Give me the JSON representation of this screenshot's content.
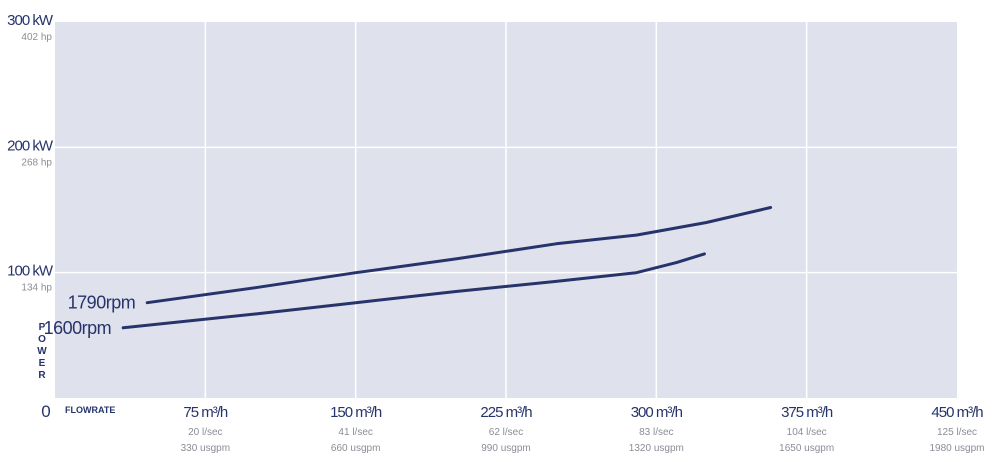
{
  "chart_data": {
    "type": "line",
    "colors": {
      "plot_bg": "#dfe1ec",
      "grid": "#ffffff",
      "line": "#27346b",
      "label": "#27346b",
      "sublabel": "#8a8d96"
    },
    "grid": true,
    "xlim": [
      0,
      450
    ],
    "ylim": [
      0,
      300
    ],
    "x_label_main": "FLOWRATE",
    "y_label_main": "POWER",
    "y_letters": [
      "P",
      "O",
      "W",
      "E",
      "R"
    ],
    "zero_label": "0",
    "y_ticks": [
      {
        "value": 100,
        "label": "100 kW",
        "sub": "134 hp"
      },
      {
        "value": 200,
        "label": "200 kW",
        "sub": "268 hp"
      },
      {
        "value": 300,
        "label": "300 kW",
        "sub": "402 hp"
      }
    ],
    "x_ticks": [
      {
        "value": 75,
        "label": "75 m³/h",
        "sub1": "20 l/sec",
        "sub2": "330 usgpm"
      },
      {
        "value": 150,
        "label": "150 m³/h",
        "sub1": "41 l/sec",
        "sub2": "660 usgpm"
      },
      {
        "value": 225,
        "label": "225 m³/h",
        "sub1": "62 l/sec",
        "sub2": "990 usgpm"
      },
      {
        "value": 300,
        "label": "300 m³/h",
        "sub1": "83 l/sec",
        "sub2": "1320 usgpm"
      },
      {
        "value": 375,
        "label": "375 m³/h",
        "sub1": "104 l/sec",
        "sub2": "1650 usgpm"
      },
      {
        "value": 450,
        "label": "450 m³/h",
        "sub1": "125 l/sec",
        "sub2": "1980 usgpm"
      }
    ],
    "series": [
      {
        "name": "1790rpm",
        "points": [
          [
            46,
            76
          ],
          [
            100,
            88
          ],
          [
            150,
            100
          ],
          [
            200,
            111
          ],
          [
            250,
            123
          ],
          [
            290,
            130
          ],
          [
            325,
            140
          ],
          [
            357,
            152
          ]
        ]
      },
      {
        "name": "1600rpm",
        "points": [
          [
            34,
            56
          ],
          [
            100,
            67
          ],
          [
            150,
            76
          ],
          [
            200,
            85
          ],
          [
            250,
            93
          ],
          [
            290,
            100
          ],
          [
            310,
            108
          ],
          [
            324,
            115
          ]
        ]
      }
    ]
  }
}
